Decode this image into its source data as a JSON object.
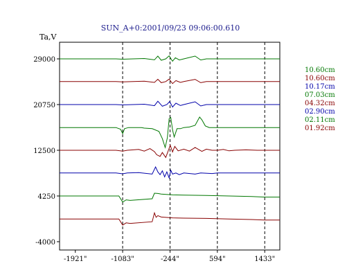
{
  "chart_data": {
    "type": "line",
    "title": "SUN_A+0:2001/09/23 09:06:00.610",
    "ylabel": "Ta,V",
    "xlabel": "",
    "xlim": [
      -2200,
      1700
    ],
    "ylim": [
      -5500,
      32000
    ],
    "x_ticks": [
      -1921,
      -1083,
      -244,
      594,
      1433
    ],
    "x_tick_labels": [
      "-1921\"",
      "-1083\"",
      "-244\"",
      "594\"",
      "1433\""
    ],
    "y_ticks": [
      29000,
      20750,
      12500,
      4250,
      -4000
    ],
    "y_tick_labels": [
      "29000",
      "20750",
      "12500",
      "4250",
      "-4000"
    ],
    "grid": false,
    "vertical_dashed_lines_x": [
      -1083,
      -244,
      594,
      1433
    ],
    "legend_position": "right",
    "series": [
      {
        "name": "10.60cm",
        "color": "#007700",
        "offset": 29000,
        "points": [
          [
            -2200,
            0
          ],
          [
            -1200,
            0
          ],
          [
            -1083,
            -60
          ],
          [
            -900,
            0
          ],
          [
            -700,
            60
          ],
          [
            -520,
            -180
          ],
          [
            -460,
            500
          ],
          [
            -400,
            -250
          ],
          [
            -320,
            0
          ],
          [
            -260,
            550
          ],
          [
            -200,
            -420
          ],
          [
            -150,
            200
          ],
          [
            -80,
            -200
          ],
          [
            0,
            0
          ],
          [
            200,
            500
          ],
          [
            300,
            -200
          ],
          [
            400,
            0
          ],
          [
            1433,
            0
          ],
          [
            1700,
            0
          ]
        ]
      },
      {
        "name": "10.60cm",
        "color": "#880000",
        "offset": 24900,
        "points": [
          [
            -2200,
            0
          ],
          [
            -1200,
            0
          ],
          [
            -1083,
            -60
          ],
          [
            -900,
            0
          ],
          [
            -700,
            60
          ],
          [
            -520,
            -150
          ],
          [
            -460,
            420
          ],
          [
            -400,
            -200
          ],
          [
            -320,
            0
          ],
          [
            -260,
            450
          ],
          [
            -200,
            -360
          ],
          [
            -140,
            180
          ],
          [
            -60,
            -150
          ],
          [
            0,
            0
          ],
          [
            200,
            400
          ],
          [
            300,
            -200
          ],
          [
            400,
            0
          ],
          [
            1433,
            0
          ],
          [
            1700,
            0
          ]
        ]
      },
      {
        "name": "10.17cm",
        "color": "#0000aa",
        "offset": 20750,
        "points": [
          [
            -2200,
            0
          ],
          [
            -1200,
            0
          ],
          [
            -1083,
            -60
          ],
          [
            -900,
            0
          ],
          [
            -700,
            60
          ],
          [
            -520,
            -200
          ],
          [
            -460,
            600
          ],
          [
            -380,
            -300
          ],
          [
            -300,
            0
          ],
          [
            -250,
            550
          ],
          [
            -200,
            -450
          ],
          [
            -140,
            250
          ],
          [
            -60,
            -180
          ],
          [
            0,
            0
          ],
          [
            200,
            500
          ],
          [
            300,
            -250
          ],
          [
            400,
            0
          ],
          [
            1433,
            0
          ],
          [
            1700,
            0
          ]
        ]
      },
      {
        "name": "07.03cm",
        "color": "#007700",
        "offset": 16600,
        "points": [
          [
            -2200,
            0
          ],
          [
            -1200,
            0
          ],
          [
            -1120,
            -300
          ],
          [
            -1083,
            -1100
          ],
          [
            -1050,
            -200
          ],
          [
            -980,
            0
          ],
          [
            -750,
            0
          ],
          [
            -700,
            -100
          ],
          [
            -560,
            -200
          ],
          [
            -440,
            -700
          ],
          [
            -380,
            -2000
          ],
          [
            -330,
            -3600
          ],
          [
            -290,
            -1800
          ],
          [
            -260,
            1600
          ],
          [
            -230,
            1800
          ],
          [
            -200,
            -400
          ],
          [
            -170,
            -1700
          ],
          [
            -120,
            -200
          ],
          [
            -60,
            -200
          ],
          [
            0,
            0
          ],
          [
            100,
            100
          ],
          [
            200,
            400
          ],
          [
            280,
            1900
          ],
          [
            320,
            1400
          ],
          [
            380,
            300
          ],
          [
            450,
            0
          ],
          [
            1433,
            0
          ],
          [
            1700,
            0
          ]
        ]
      },
      {
        "name": "04.32cm",
        "color": "#880000",
        "offset": 12500,
        "points": [
          [
            -2200,
            0
          ],
          [
            -1200,
            0
          ],
          [
            -1083,
            -150
          ],
          [
            -1000,
            0
          ],
          [
            -800,
            150
          ],
          [
            -700,
            -150
          ],
          [
            -600,
            300
          ],
          [
            -520,
            -250
          ],
          [
            -480,
            -800
          ],
          [
            -420,
            -1100
          ],
          [
            -380,
            -400
          ],
          [
            -320,
            -1300
          ],
          [
            -280,
            -200
          ],
          [
            -240,
            900
          ],
          [
            -200,
            -300
          ],
          [
            -160,
            700
          ],
          [
            -100,
            -100
          ],
          [
            0,
            200
          ],
          [
            100,
            -150
          ],
          [
            200,
            500
          ],
          [
            320,
            -200
          ],
          [
            400,
            200
          ],
          [
            500,
            0
          ],
          [
            600,
            0
          ],
          [
            700,
            150
          ],
          [
            800,
            -100
          ],
          [
            900,
            0
          ],
          [
            1100,
            80
          ],
          [
            1300,
            0
          ],
          [
            1700,
            0
          ]
        ]
      },
      {
        "name": "02.90cm",
        "color": "#0000aa",
        "offset": 8400,
        "points": [
          [
            -2200,
            0
          ],
          [
            -1200,
            0
          ],
          [
            -1083,
            -150
          ],
          [
            -1000,
            0
          ],
          [
            -800,
            80
          ],
          [
            -560,
            -200
          ],
          [
            -500,
            1100
          ],
          [
            -460,
            200
          ],
          [
            -420,
            -300
          ],
          [
            -380,
            400
          ],
          [
            -340,
            -700
          ],
          [
            -300,
            200
          ],
          [
            -260,
            -900
          ],
          [
            -230,
            500
          ],
          [
            -200,
            -200
          ],
          [
            -140,
            0
          ],
          [
            -80,
            -300
          ],
          [
            0,
            0
          ],
          [
            200,
            -200
          ],
          [
            300,
            0
          ],
          [
            500,
            -100
          ],
          [
            600,
            0
          ],
          [
            1433,
            0
          ],
          [
            1700,
            0
          ]
        ]
      },
      {
        "name": "02.11cm",
        "color": "#007700",
        "offset": 4250,
        "points": [
          [
            -2200,
            0
          ],
          [
            -1150,
            0
          ],
          [
            -1083,
            -1100
          ],
          [
            -1020,
            -700
          ],
          [
            -950,
            -800
          ],
          [
            -560,
            -500
          ],
          [
            -520,
            500
          ],
          [
            -460,
            450
          ],
          [
            -400,
            350
          ],
          [
            -200,
            200
          ],
          [
            0,
            150
          ],
          [
            400,
            100
          ],
          [
            800,
            0
          ],
          [
            1200,
            -100
          ],
          [
            1433,
            -200
          ],
          [
            1700,
            -200
          ]
        ]
      },
      {
        "name": "01.92cm",
        "color": "#880000",
        "offset": 100,
        "points": [
          [
            -2200,
            0
          ],
          [
            -1150,
            0
          ],
          [
            -1083,
            -1100
          ],
          [
            -1020,
            -700
          ],
          [
            -950,
            -800
          ],
          [
            -560,
            -500
          ],
          [
            -520,
            1100
          ],
          [
            -490,
            300
          ],
          [
            -460,
            600
          ],
          [
            -400,
            350
          ],
          [
            -200,
            200
          ],
          [
            0,
            150
          ],
          [
            400,
            100
          ],
          [
            800,
            0
          ],
          [
            1200,
            -100
          ],
          [
            1433,
            -200
          ],
          [
            1700,
            -200
          ]
        ]
      }
    ]
  }
}
